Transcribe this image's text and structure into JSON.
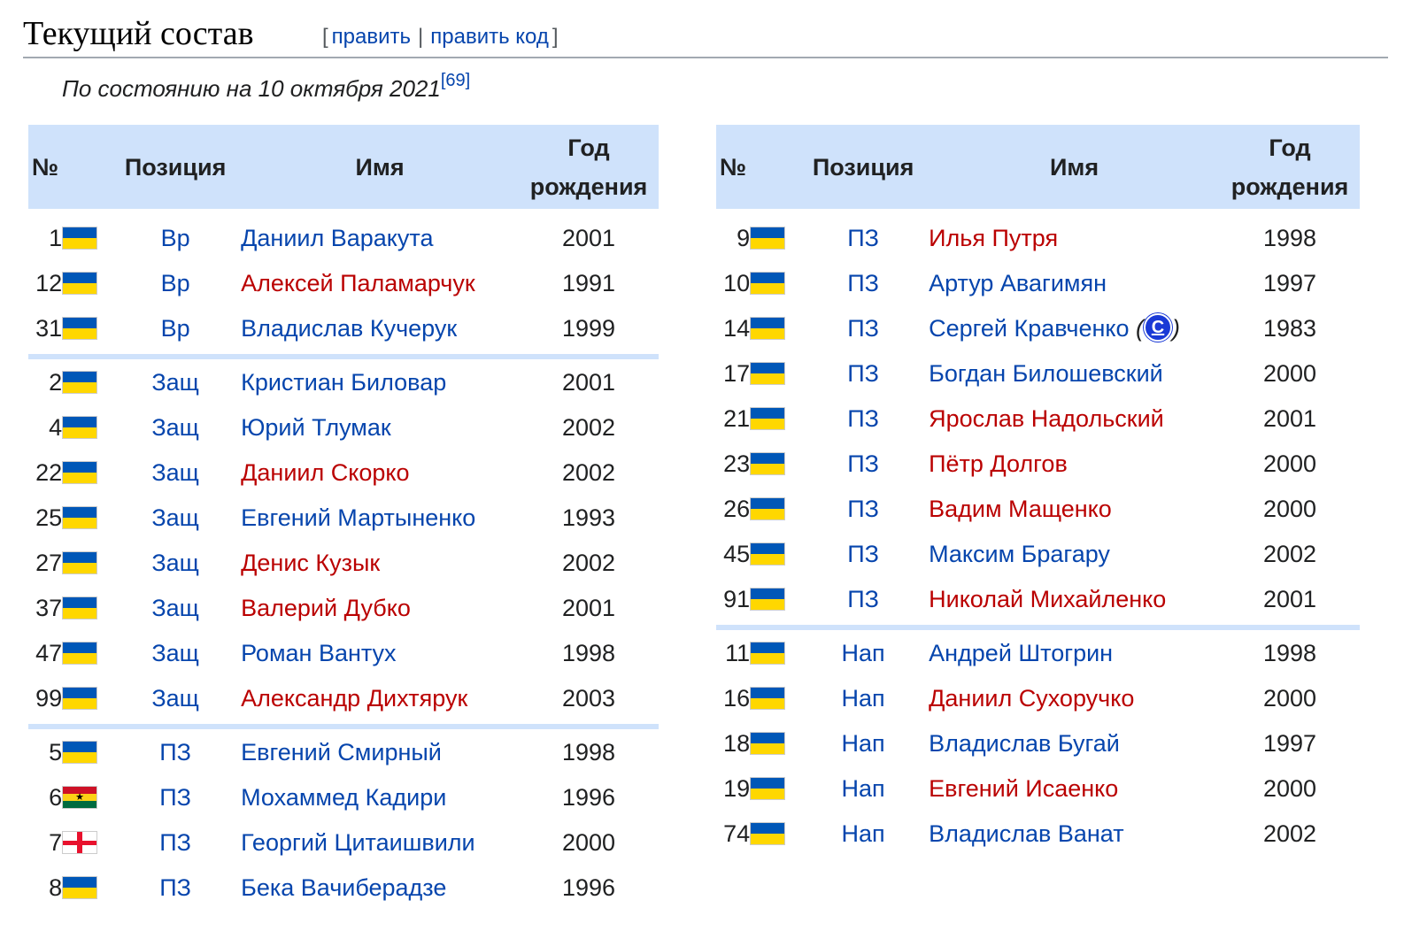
{
  "heading": {
    "title": "Текущий состав",
    "edit_open": "[",
    "edit_label": "править",
    "edit_sep": "|",
    "edit_code_label": "править код",
    "edit_close": "]"
  },
  "note": {
    "text": "По состоянию на 10 октября 2021",
    "ref": "[69]"
  },
  "columns": {
    "num": "№",
    "pos": "Позиция",
    "name": "Имя",
    "year_line1": "Год",
    "year_line2": "рождения"
  },
  "captain_badge": "C",
  "left_table": {
    "groups": [
      [
        {
          "num": "1",
          "flag": "ua",
          "pos": "Вр",
          "name": "Даниил Варакута",
          "red": false,
          "year": "2001"
        },
        {
          "num": "12",
          "flag": "ua",
          "pos": "Вр",
          "name": "Алексей Паламарчук",
          "red": true,
          "year": "1991"
        },
        {
          "num": "31",
          "flag": "ua",
          "pos": "Вр",
          "name": "Владислав Кучерук",
          "red": false,
          "year": "1999"
        }
      ],
      [
        {
          "num": "2",
          "flag": "ua",
          "pos": "Защ",
          "name": "Кристиан Биловар",
          "red": false,
          "year": "2001"
        },
        {
          "num": "4",
          "flag": "ua",
          "pos": "Защ",
          "name": "Юрий Тлумак",
          "red": false,
          "year": "2002"
        },
        {
          "num": "22",
          "flag": "ua",
          "pos": "Защ",
          "name": "Даниил Скорко",
          "red": true,
          "year": "2002"
        },
        {
          "num": "25",
          "flag": "ua",
          "pos": "Защ",
          "name": "Евгений Мартыненко",
          "red": false,
          "year": "1993"
        },
        {
          "num": "27",
          "flag": "ua",
          "pos": "Защ",
          "name": "Денис Кузык",
          "red": true,
          "year": "2002"
        },
        {
          "num": "37",
          "flag": "ua",
          "pos": "Защ",
          "name": "Валерий Дубко",
          "red": true,
          "year": "2001"
        },
        {
          "num": "47",
          "flag": "ua",
          "pos": "Защ",
          "name": "Роман Вантух",
          "red": false,
          "year": "1998"
        },
        {
          "num": "99",
          "flag": "ua",
          "pos": "Защ",
          "name": "Александр Дихтярук",
          "red": true,
          "year": "2003"
        }
      ],
      [
        {
          "num": "5",
          "flag": "ua",
          "pos": "ПЗ",
          "name": "Евгений Смирный",
          "red": false,
          "year": "1998"
        },
        {
          "num": "6",
          "flag": "gh",
          "pos": "ПЗ",
          "name": "Мохаммед Кадири",
          "red": false,
          "year": "1996"
        },
        {
          "num": "7",
          "flag": "ge",
          "pos": "ПЗ",
          "name": "Георгий Цитаишвили",
          "red": false,
          "year": "2000"
        },
        {
          "num": "8",
          "flag": "ua",
          "pos": "ПЗ",
          "name": "Бека Вачиберадзе",
          "red": false,
          "year": "1996"
        }
      ]
    ]
  },
  "right_table": {
    "groups": [
      [
        {
          "num": "9",
          "flag": "ua",
          "pos": "ПЗ",
          "name": "Илья Путря",
          "red": true,
          "year": "1998"
        },
        {
          "num": "10",
          "flag": "ua",
          "pos": "ПЗ",
          "name": "Артур Авагимян",
          "red": false,
          "year": "1997"
        },
        {
          "num": "14",
          "flag": "ua",
          "pos": "ПЗ",
          "name": "Сергей Кравченко",
          "red": false,
          "captain": true,
          "year": "1983"
        },
        {
          "num": "17",
          "flag": "ua",
          "pos": "ПЗ",
          "name": "Богдан Билошевский",
          "red": false,
          "year": "2000"
        },
        {
          "num": "21",
          "flag": "ua",
          "pos": "ПЗ",
          "name": "Ярослав Надольский",
          "red": true,
          "year": "2001"
        },
        {
          "num": "23",
          "flag": "ua",
          "pos": "ПЗ",
          "name": "Пётр Долгов",
          "red": true,
          "year": "2000"
        },
        {
          "num": "26",
          "flag": "ua",
          "pos": "ПЗ",
          "name": "Вадим Мащенко",
          "red": true,
          "year": "2000"
        },
        {
          "num": "45",
          "flag": "ua",
          "pos": "ПЗ",
          "name": "Максим Брагару",
          "red": false,
          "year": "2002"
        },
        {
          "num": "91",
          "flag": "ua",
          "pos": "ПЗ",
          "name": "Николай Михайленко",
          "red": true,
          "year": "2001"
        }
      ],
      [
        {
          "num": "11",
          "flag": "ua",
          "pos": "Нап",
          "name": "Андрей Штогрин",
          "red": false,
          "year": "1998"
        },
        {
          "num": "16",
          "flag": "ua",
          "pos": "Нап",
          "name": "Даниил Сухоручко",
          "red": true,
          "year": "2000"
        },
        {
          "num": "18",
          "flag": "ua",
          "pos": "Нап",
          "name": "Владислав Бугай",
          "red": false,
          "year": "1997"
        },
        {
          "num": "19",
          "flag": "ua",
          "pos": "Нап",
          "name": "Евгений Исаенко",
          "red": true,
          "year": "2000"
        },
        {
          "num": "74",
          "flag": "ua",
          "pos": "Нап",
          "name": "Владислав Ванат",
          "red": false,
          "year": "2002"
        }
      ]
    ]
  }
}
